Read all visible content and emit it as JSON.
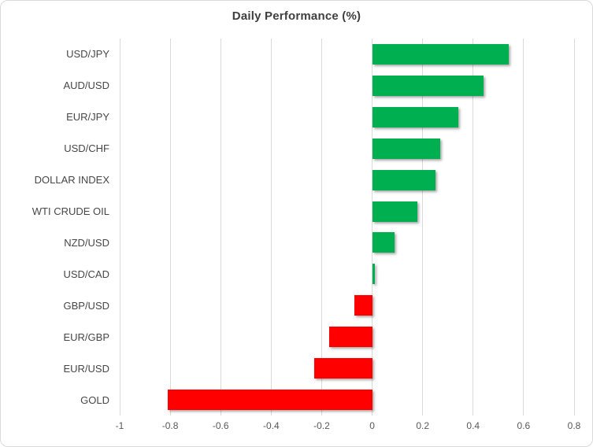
{
  "chart_data": {
    "type": "bar",
    "orientation": "horizontal",
    "title": "Daily Performance (%)",
    "categories": [
      "USD/JPY",
      "AUD/USD",
      "EUR/JPY",
      "USD/CHF",
      "DOLLAR INDEX",
      "WTI CRUDE OIL",
      "NZD/USD",
      "USD/CAD",
      "GBP/USD",
      "EUR/GBP",
      "EUR/USD",
      "GOLD"
    ],
    "values": [
      0.54,
      0.44,
      0.34,
      0.27,
      0.25,
      0.18,
      0.09,
      0.01,
      -0.07,
      -0.17,
      -0.23,
      -0.81
    ],
    "xlabel": "",
    "ylabel": "",
    "xlim": [
      -1,
      0.8
    ],
    "x_ticks": [
      -1,
      -0.8,
      -0.6,
      -0.4,
      -0.2,
      0,
      0.2,
      0.4,
      0.6,
      0.8
    ],
    "x_tick_labels": [
      "-1",
      "-0.8",
      "-0.6",
      "-0.4",
      "-0.2",
      "0",
      "0.2",
      "0.4",
      "0.6",
      "0.8"
    ],
    "grid": "vertical",
    "legend": "none",
    "positive_color": "#00b050",
    "negative_color": "#ff0000",
    "gridline_color": "#d9d9d9",
    "title_color": "#3f3f3f",
    "category_label_color": "#474747",
    "tick_label_color": "#595959"
  }
}
